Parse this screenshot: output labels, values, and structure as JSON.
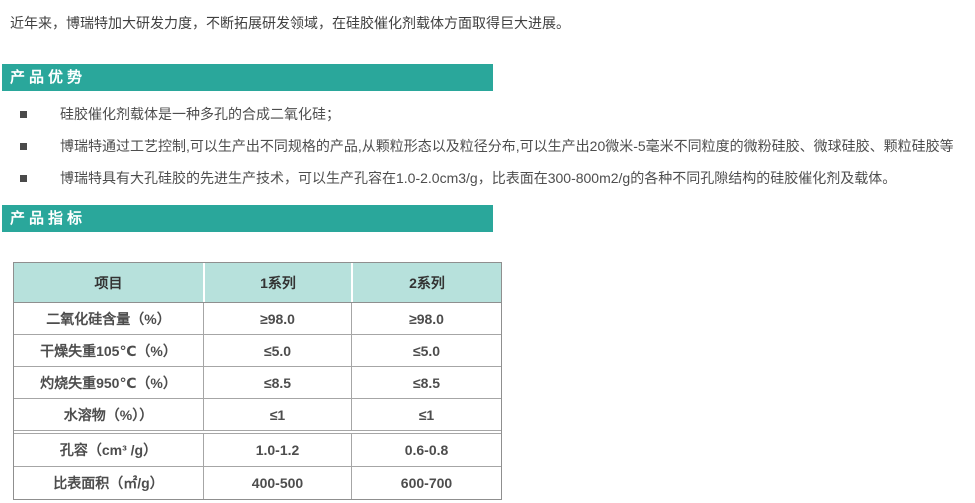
{
  "intro": "近年来，博瑞特加大研发力度，不断拓展研发领域，在硅胶催化剂载体方面取得巨大进展。",
  "sections": {
    "advantages": {
      "title": "产品优势",
      "bullets": [
        "硅胶催化剂载体是一种多孔的合成二氧化硅；",
        "博瑞特通过工艺控制,可以生产出不同规格的产品,从颗粒形态以及粒径分布,可以生产出20微米-5毫米不同粒度的微粉硅胶、微球硅胶、颗粒硅胶等",
        "博瑞特具有大孔硅胶的先进生产技术，可以生产孔容在1.0-2.0cm3/g，比表面在300-800m2/g的各种不同孔隙结构的硅胶催化剂及载体。"
      ]
    },
    "indicators": {
      "title": "产品指标"
    }
  },
  "table": {
    "headers": [
      "项目",
      "1系列",
      "2系列"
    ],
    "rows": [
      {
        "item": "二氧化硅含量（%）",
        "s1": "≥98.0",
        "s2": "≥98.0"
      },
      {
        "item": "干燥失重105℃（%）",
        "s1": "≤5.0",
        "s2": "≤5.0"
      },
      {
        "item": "灼烧失重950℃（%）",
        "s1": "≤8.5",
        "s2": "≤8.5"
      },
      {
        "item": "水溶物（%））",
        "s1": "≤1",
        "s2": "≤1"
      },
      {
        "item": "孔容（cm³ /g）",
        "s1": "1.0-1.2",
        "s2": "0.6-0.8"
      },
      {
        "item": "比表面积（㎡/g）",
        "s1": "400-500",
        "s2": "600-700"
      }
    ]
  },
  "colors": {
    "banner_bg": "#2aa79b",
    "banner_text": "#ffffff",
    "table_header_bg": "#b7e1dc",
    "table_border": "#8f8f8f",
    "body_text": "#4d4d4d"
  }
}
